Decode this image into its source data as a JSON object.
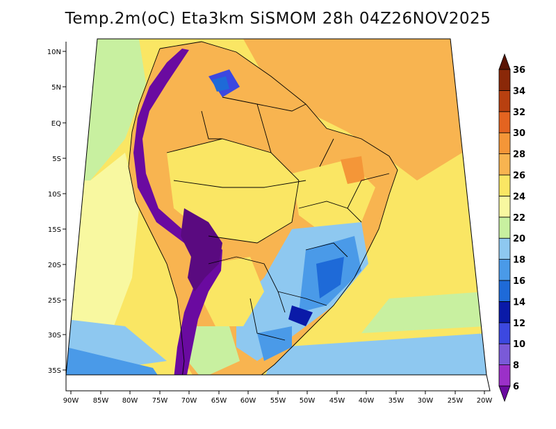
{
  "title": "Temp.2m(oC) Eta3km SiSMOM 28h 04Z26NOV2025",
  "map": {
    "variable": "2 m air temperature",
    "units": "oC",
    "region": "South America",
    "lon_ticks": [
      "90W",
      "85W",
      "80W",
      "75W",
      "70W",
      "65W",
      "60W",
      "55W",
      "50W",
      "45W",
      "40W",
      "35W",
      "30W",
      "25W",
      "20W"
    ],
    "lat_ticks": [
      "10N",
      "5N",
      "EQ",
      "5S",
      "10S",
      "15S",
      "20S",
      "25S",
      "30S",
      "35S"
    ]
  },
  "colorbar": {
    "labels": [
      "6",
      "8",
      "10",
      "12",
      "14",
      "16",
      "18",
      "20",
      "22",
      "24",
      "26",
      "28",
      "30",
      "32",
      "34",
      "36"
    ],
    "colors": [
      "#6a0aa0",
      "#9b30c8",
      "#7a5ad8",
      "#3c48e0",
      "#0a1aa8",
      "#1e6ad8",
      "#4a9ae8",
      "#8ec8f0",
      "#c8f0a0",
      "#f8f8a0",
      "#fae664",
      "#f8b450",
      "#f49638",
      "#e46420",
      "#b84010",
      "#8a2808",
      "#5a1404"
    ]
  }
}
